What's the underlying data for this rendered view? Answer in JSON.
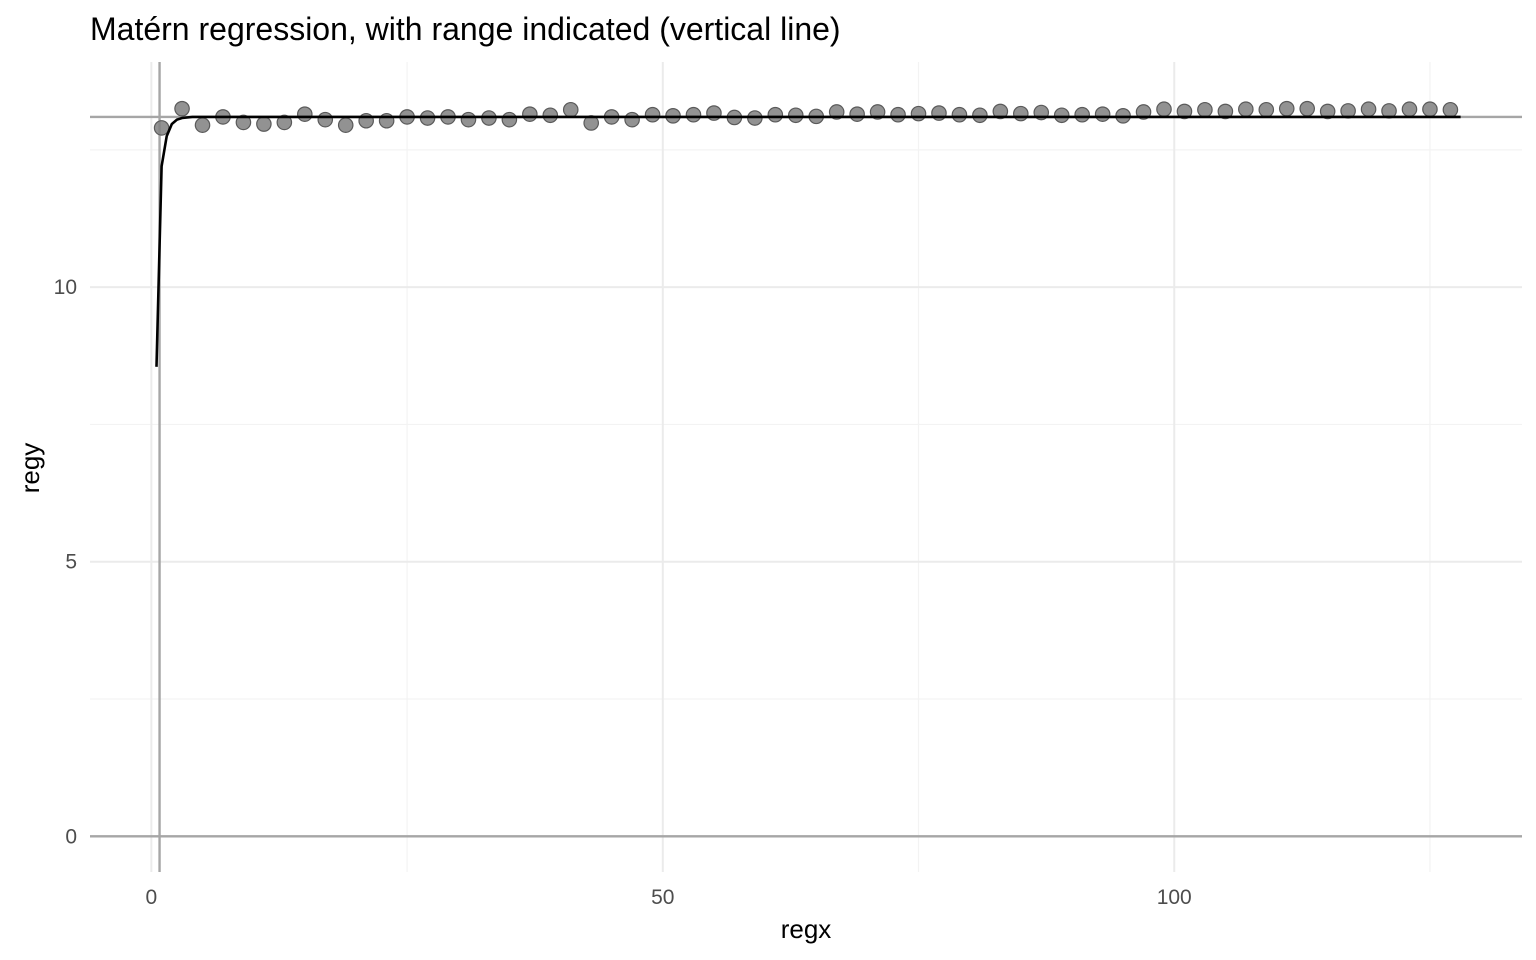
{
  "chart_data": {
    "type": "scatter",
    "title": "Matérn regression, with range indicated (vertical line)",
    "xlabel": "regx",
    "ylabel": "regy",
    "xlim": [
      -6,
      134
    ],
    "ylim": [
      -0.65,
      14.1
    ],
    "x_ticks": [
      0,
      50,
      100
    ],
    "y_ticks": [
      0,
      5,
      10
    ],
    "grid": true,
    "legend": "none",
    "range_x": 0.8,
    "reference_hline_y": 13.1,
    "reference_hline_y0": 0,
    "series": [
      {
        "type": "scatter",
        "x": [
          1,
          3,
          5,
          7,
          9,
          11,
          13,
          15,
          17,
          19,
          21,
          23,
          25,
          27,
          29,
          31,
          33,
          35,
          37,
          39,
          41,
          43,
          45,
          47,
          49,
          51,
          53,
          55,
          57,
          59,
          61,
          63,
          65,
          67,
          69,
          71,
          73,
          75,
          77,
          79,
          81,
          83,
          85,
          87,
          89,
          91,
          93,
          95,
          97,
          99,
          101,
          103,
          105,
          107,
          109,
          111,
          113,
          115,
          117,
          119,
          121,
          123,
          125,
          127
        ],
        "y": [
          12.9,
          13.25,
          12.95,
          13.1,
          13.0,
          12.97,
          13.0,
          13.15,
          13.05,
          12.95,
          13.03,
          13.03,
          13.1,
          13.08,
          13.1,
          13.05,
          13.08,
          13.05,
          13.15,
          13.13,
          13.23,
          12.99,
          13.1,
          13.05,
          13.14,
          13.12,
          13.14,
          13.17,
          13.09,
          13.08,
          13.14,
          13.13,
          13.11,
          13.19,
          13.15,
          13.19,
          13.14,
          13.16,
          13.17,
          13.14,
          13.13,
          13.2,
          13.16,
          13.18,
          13.13,
          13.14,
          13.15,
          13.12,
          13.19,
          13.24,
          13.2,
          13.23,
          13.2,
          13.24,
          13.23,
          13.25,
          13.25,
          13.2,
          13.21,
          13.24,
          13.21,
          13.24,
          13.24,
          13.23
        ]
      },
      {
        "type": "line",
        "x": [
          0.5,
          1.0,
          1.5,
          2.0,
          2.5,
          3.0,
          4.0,
          6.0,
          10.0,
          20.0,
          50.0,
          80.0,
          110.0,
          128.0
        ],
        "y": [
          8.55,
          12.2,
          12.75,
          12.97,
          13.05,
          13.08,
          13.1,
          13.1,
          13.1,
          13.1,
          13.1,
          13.1,
          13.1,
          13.1
        ]
      }
    ]
  }
}
